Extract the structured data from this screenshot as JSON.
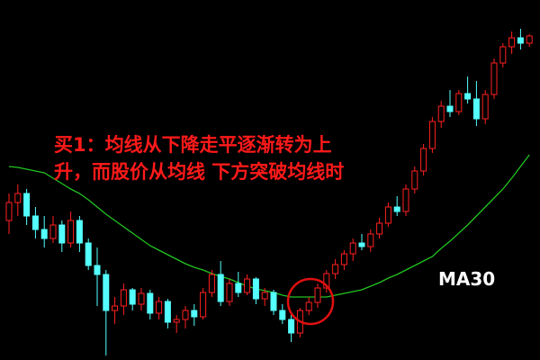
{
  "chart_data": {
    "type": "candlestick",
    "annotation": [
      "买1：均线从下降走平逐渐转为上",
      "升，而股价从均线 下方突破均线时"
    ],
    "ylim": [
      0,
      400
    ],
    "up_color": "#ff2020",
    "down_color": "#54ffff",
    "open": [
      155,
      175,
      185,
      160,
      145,
      135,
      150,
      130,
      155,
      130,
      105,
      95,
      55,
      60,
      78,
      62,
      74,
      52,
      65,
      42,
      45,
      55,
      48,
      75,
      95,
      65,
      85,
      75,
      90,
      68,
      75,
      55,
      45,
      30,
      55,
      64,
      80,
      96,
      106,
      118,
      130,
      126,
      140,
      152,
      170,
      165,
      190,
      210,
      235,
      265,
      282,
      276,
      296,
      290,
      268,
      295,
      330,
      348,
      358,
      352
    ],
    "high": [
      185,
      195,
      190,
      170,
      160,
      160,
      155,
      165,
      160,
      135,
      125,
      100,
      70,
      85,
      80,
      80,
      78,
      70,
      68,
      50,
      60,
      62,
      80,
      100,
      110,
      90,
      98,
      95,
      92,
      80,
      78,
      62,
      50,
      58,
      70,
      85,
      100,
      112,
      122,
      135,
      140,
      145,
      158,
      175,
      182,
      195,
      215,
      240,
      270,
      288,
      300,
      300,
      315,
      310,
      300,
      335,
      352,
      365,
      368,
      362
    ],
    "low": [
      140,
      160,
      150,
      135,
      125,
      130,
      120,
      125,
      120,
      100,
      60,
      5,
      40,
      50,
      55,
      55,
      45,
      45,
      35,
      30,
      35,
      38,
      45,
      70,
      60,
      60,
      70,
      72,
      62,
      60,
      50,
      40,
      20,
      25,
      50,
      58,
      75,
      90,
      100,
      110,
      122,
      120,
      135,
      148,
      160,
      160,
      185,
      205,
      230,
      258,
      270,
      272,
      285,
      260,
      262,
      290,
      325,
      340,
      345,
      348
    ],
    "close": [
      175,
      185,
      160,
      145,
      135,
      150,
      130,
      155,
      130,
      105,
      95,
      55,
      60,
      78,
      62,
      74,
      52,
      65,
      42,
      45,
      55,
      48,
      75,
      95,
      65,
      85,
      75,
      90,
      68,
      75,
      55,
      45,
      30,
      55,
      64,
      80,
      96,
      106,
      118,
      130,
      126,
      140,
      152,
      170,
      165,
      190,
      210,
      235,
      265,
      282,
      276,
      296,
      290,
      268,
      295,
      330,
      348,
      358,
      352,
      360
    ],
    "series": [
      {
        "name": "MA30",
        "color": "#22c322",
        "values": [
          215,
          214,
          212,
          210,
          208,
          202,
          196,
          190,
          185,
          178,
          170,
          162,
          155,
          148,
          141,
          134,
          127,
          122,
          117,
          112,
          107,
          103,
          100,
          96,
          93,
          90,
          86,
          82,
          79,
          77,
          75,
          72,
          70,
          70,
          70,
          70,
          70,
          72,
          74,
          76,
          78,
          82,
          86,
          91,
          95,
          100,
          105,
          110,
          115,
          124,
          132,
          141,
          150,
          160,
          170,
          180,
          190,
          202,
          215,
          228
        ]
      }
    ]
  }
}
